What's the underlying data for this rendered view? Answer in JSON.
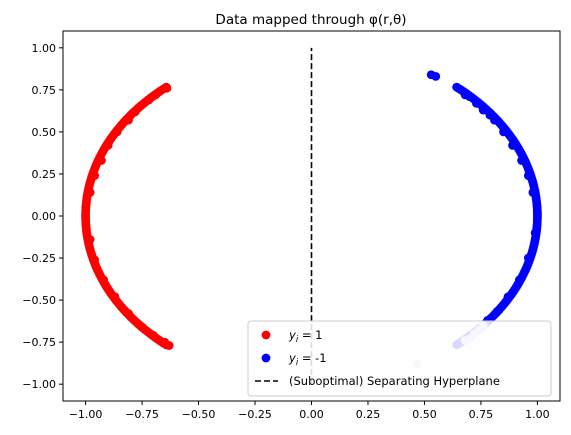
{
  "chart_data": {
    "type": "scatter",
    "title": "Data mapped through φ(r,θ)",
    "xlabel": "",
    "ylabel": "",
    "xlim": [
      -1.1,
      1.1
    ],
    "ylim": [
      -1.1,
      1.1
    ],
    "x_ticks": [
      -1.0,
      -0.75,
      -0.5,
      -0.25,
      0.0,
      0.25,
      0.5,
      0.75,
      1.0
    ],
    "x_tick_labels": [
      "−1.00",
      "−0.75",
      "−0.50",
      "−0.25",
      "0.00",
      "0.25",
      "0.50",
      "0.75",
      "1.00"
    ],
    "y_ticks": [
      1.0,
      0.75,
      0.5,
      0.25,
      0.0,
      -0.25,
      -0.5,
      -0.75,
      -1.0
    ],
    "y_tick_labels": [
      "1.00",
      "0.75",
      "0.50",
      "0.25",
      "0.00",
      "−0.25",
      "−0.50",
      "−0.75",
      "−1.00"
    ],
    "grid": false,
    "legend_position": "lower-right",
    "series": [
      {
        "name_main": "y",
        "name_sub": "i",
        "name_suffix": " = 1",
        "color": "#ff0000",
        "marker": "circle",
        "arc": {
          "center": [
            0,
            0
          ],
          "radius": 1.0,
          "theta_deg_range": [
            130,
            230
          ]
        },
        "points": [
          [
            -0.64,
            0.76
          ],
          [
            -0.69,
            0.72
          ],
          [
            -0.72,
            0.69
          ],
          [
            -0.78,
            0.62
          ],
          [
            -0.81,
            0.57
          ],
          [
            -0.86,
            0.5
          ],
          [
            -0.9,
            0.42
          ],
          [
            -0.93,
            0.33
          ],
          [
            -0.96,
            0.24
          ],
          [
            -0.98,
            0.14
          ],
          [
            -1.0,
            0.0
          ],
          [
            -0.98,
            -0.14
          ],
          [
            -0.96,
            -0.26
          ],
          [
            -0.92,
            -0.38
          ],
          [
            -0.87,
            -0.48
          ],
          [
            -0.81,
            -0.58
          ],
          [
            -0.75,
            -0.66
          ],
          [
            -0.7,
            -0.71
          ],
          [
            -0.65,
            -0.75
          ],
          [
            -0.63,
            -0.77
          ]
        ]
      },
      {
        "name_main": "y",
        "name_sub": "i",
        "name_suffix": " = -1",
        "color": "#0000ff",
        "marker": "circle",
        "arc": {
          "center": [
            0,
            0
          ],
          "radius": 1.0,
          "theta_deg_range": [
            -50,
            50
          ]
        },
        "points": [
          [
            0.53,
            0.84
          ],
          [
            0.55,
            0.83
          ],
          [
            0.68,
            0.72
          ],
          [
            0.7,
            0.71
          ],
          [
            0.73,
            0.67
          ],
          [
            0.76,
            0.63
          ],
          [
            0.79,
            0.6
          ],
          [
            0.81,
            0.57
          ],
          [
            0.85,
            0.5
          ],
          [
            0.89,
            0.42
          ],
          [
            0.93,
            0.33
          ],
          [
            0.96,
            0.24
          ],
          [
            0.98,
            0.14
          ],
          [
            1.0,
            0.02
          ],
          [
            0.99,
            -0.1
          ],
          [
            0.96,
            -0.25
          ],
          [
            0.92,
            -0.38
          ],
          [
            0.87,
            -0.48
          ],
          [
            0.82,
            -0.57
          ],
          [
            0.78,
            -0.62
          ]
        ]
      },
      {
        "name": "",
        "color": "#c8c8f5",
        "marker": "circle",
        "legend": false,
        "points": [
          [
            0.47,
            -0.88
          ],
          [
            0.68,
            -0.74
          ],
          [
            0.7,
            -0.73
          ],
          [
            0.72,
            -0.7
          ],
          [
            0.74,
            -0.68
          ],
          [
            0.76,
            -0.65
          ]
        ]
      }
    ],
    "hyperplane": {
      "name": "(Suboptimal) Separating Hyperplane",
      "x": [
        0.0,
        0.0
      ],
      "y": [
        -1.0,
        1.0
      ],
      "style": "dashed",
      "color": "#000000"
    }
  }
}
